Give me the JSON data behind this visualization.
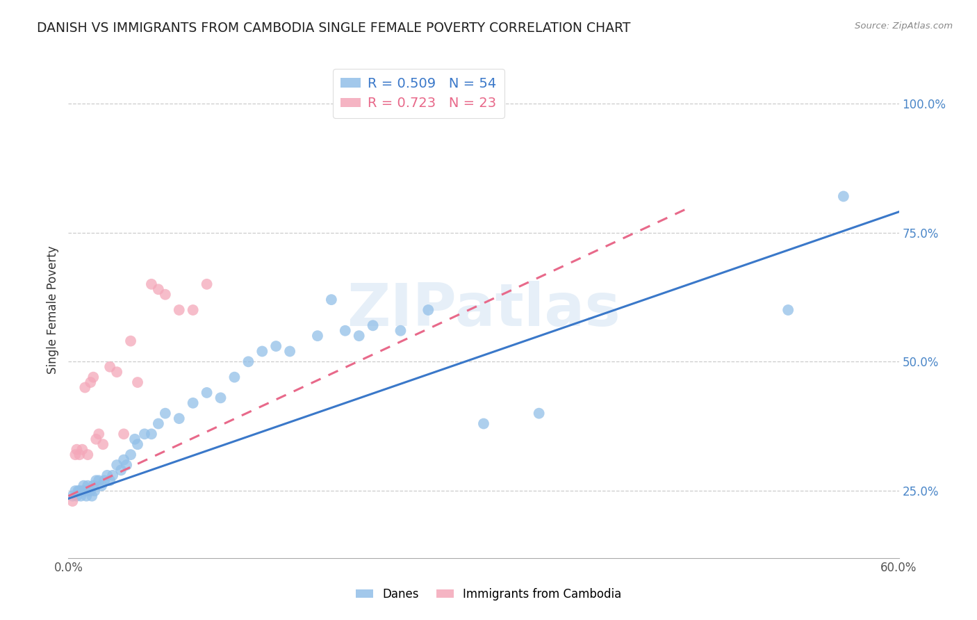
{
  "title": "DANISH VS IMMIGRANTS FROM CAMBODIA SINGLE FEMALE POVERTY CORRELATION CHART",
  "source": "Source: ZipAtlas.com",
  "ylabel": "Single Female Poverty",
  "xlim": [
    0.0,
    0.6
  ],
  "ylim": [
    0.12,
    1.08
  ],
  "yticks": [
    0.25,
    0.5,
    0.75,
    1.0
  ],
  "ytick_labels": [
    "25.0%",
    "50.0%",
    "75.0%",
    "100.0%"
  ],
  "xticks": [
    0.0,
    0.1,
    0.2,
    0.3,
    0.4,
    0.5,
    0.6
  ],
  "xtick_labels": [
    "0.0%",
    "",
    "",
    "",
    "",
    "",
    "60.0%"
  ],
  "danes_color": "#92bfe8",
  "cambodia_color": "#f4a7b9",
  "trend_danes_color": "#3a78c9",
  "trend_cambodia_color": "#e8698a",
  "watermark": "ZIPatlas",
  "R_danes": 0.509,
  "N_danes": 54,
  "R_cambodia": 0.723,
  "N_cambodia": 23,
  "danes_x": [
    0.003,
    0.005,
    0.006,
    0.007,
    0.008,
    0.009,
    0.01,
    0.011,
    0.012,
    0.013,
    0.014,
    0.015,
    0.016,
    0.017,
    0.018,
    0.019,
    0.02,
    0.022,
    0.024,
    0.026,
    0.028,
    0.03,
    0.032,
    0.035,
    0.038,
    0.04,
    0.042,
    0.045,
    0.048,
    0.05,
    0.055,
    0.06,
    0.065,
    0.07,
    0.08,
    0.09,
    0.1,
    0.11,
    0.12,
    0.13,
    0.14,
    0.15,
    0.16,
    0.18,
    0.19,
    0.2,
    0.21,
    0.22,
    0.24,
    0.26,
    0.3,
    0.34,
    0.52,
    0.56
  ],
  "danes_y": [
    0.24,
    0.25,
    0.24,
    0.25,
    0.25,
    0.24,
    0.25,
    0.26,
    0.25,
    0.24,
    0.26,
    0.25,
    0.25,
    0.24,
    0.26,
    0.25,
    0.27,
    0.27,
    0.26,
    0.27,
    0.28,
    0.27,
    0.28,
    0.3,
    0.29,
    0.31,
    0.3,
    0.32,
    0.35,
    0.34,
    0.36,
    0.36,
    0.38,
    0.4,
    0.39,
    0.42,
    0.44,
    0.43,
    0.47,
    0.5,
    0.52,
    0.53,
    0.52,
    0.55,
    0.62,
    0.56,
    0.55,
    0.57,
    0.56,
    0.6,
    0.38,
    0.4,
    0.6,
    0.82
  ],
  "cambodia_x": [
    0.003,
    0.005,
    0.006,
    0.008,
    0.01,
    0.012,
    0.014,
    0.016,
    0.018,
    0.02,
    0.022,
    0.025,
    0.03,
    0.035,
    0.04,
    0.045,
    0.05,
    0.06,
    0.065,
    0.07,
    0.08,
    0.09,
    0.1
  ],
  "cambodia_y": [
    0.23,
    0.32,
    0.33,
    0.32,
    0.33,
    0.45,
    0.32,
    0.46,
    0.47,
    0.35,
    0.36,
    0.34,
    0.49,
    0.48,
    0.36,
    0.54,
    0.46,
    0.65,
    0.64,
    0.63,
    0.6,
    0.6,
    0.65
  ],
  "danes_trend_x0": 0.0,
  "danes_trend_y0": 0.235,
  "danes_trend_x1": 0.6,
  "danes_trend_y1": 0.79,
  "cambodia_trend_x0": 0.0,
  "cambodia_trend_y0": 0.24,
  "cambodia_trend_x1": 0.45,
  "cambodia_trend_y1": 0.8
}
